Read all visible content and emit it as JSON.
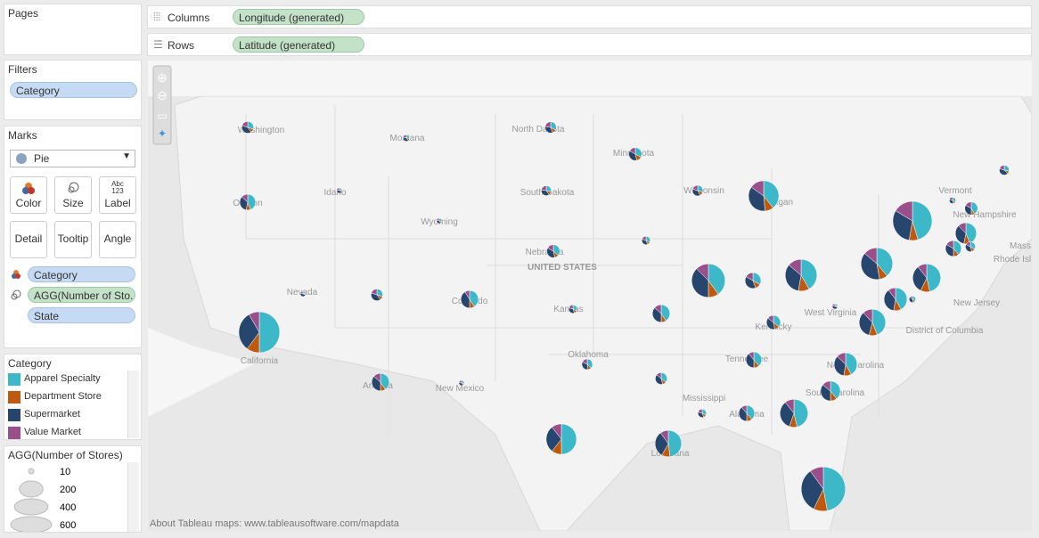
{
  "pages": {
    "title": "Pages"
  },
  "shelves": {
    "columns": {
      "label": "Columns",
      "pill": "Longitude (generated)"
    },
    "rows": {
      "label": "Rows",
      "pill": "Latitude (generated)"
    }
  },
  "filters": {
    "title": "Filters",
    "pills": [
      "Category"
    ]
  },
  "marks": {
    "title": "Marks",
    "type": "Pie",
    "buttons": [
      "Color",
      "Size",
      "Label",
      "Detail",
      "Tooltip",
      "Angle"
    ],
    "label_icon": [
      "Abc",
      "123"
    ],
    "pills": [
      "Category",
      "AGG(Number of Sto..",
      "State"
    ]
  },
  "color_legend": {
    "title": "Category",
    "series": [
      {
        "name": "Apparel Specialty",
        "color": "#3db8c8"
      },
      {
        "name": "Department Store",
        "color": "#c0590e"
      },
      {
        "name": "Supermarket",
        "color": "#26466d"
      },
      {
        "name": "Value Market",
        "color": "#9a4f8a"
      }
    ]
  },
  "size_legend": {
    "title": "AGG(Number of Stores)",
    "values": [
      10,
      200,
      400,
      600
    ]
  },
  "map": {
    "attribution": "About Tableau maps: www.tableausoftware.com/mapdata",
    "labels": [
      "Washington",
      "Montana",
      "North Dakota",
      "Minnesota",
      "Idaho",
      "South Dakota",
      "Wisconsin",
      "Michigan",
      "Vermont",
      "Oregon",
      "New Hampshire",
      "Wyoming",
      "Nebraska",
      "UNITED STATES",
      "Mass",
      "Rhode Isl",
      "Nevada",
      "Colorado",
      "Kansas",
      "New Jersey",
      "West Virginia",
      "Kentucky",
      "District of Columbia",
      "California",
      "Tennessee",
      "North Carolina",
      "Oklahoma",
      "Arizona",
      "New Mexico",
      "South Carolina",
      "Mississippi",
      "Alabama",
      "Louisiana"
    ],
    "pies": [
      {
        "values": [
          15,
          5,
          20,
          10
        ]
      },
      {
        "values": [
          4,
          2,
          6,
          3
        ]
      },
      {
        "values": [
          15,
          5,
          15,
          10
        ]
      },
      {
        "values": [
          20,
          8,
          22,
          10
        ]
      },
      {
        "values": [
          10,
          3,
          15,
          7
        ]
      },
      {
        "values": [
          40,
          8,
          30,
          12
        ]
      },
      {
        "values": [
          2,
          1,
          5,
          2
        ]
      },
      {
        "values": [
          10,
          4,
          13,
          8
        ]
      },
      {
        "values": [
          12,
          5,
          15,
          8
        ]
      },
      {
        "values": [
          130,
          30,
          120,
          50
        ]
      },
      {
        "values": [
          5,
          2,
          5,
          3
        ]
      },
      {
        "values": [
          25,
          5,
          20,
          10
        ]
      },
      {
        "values": [
          250,
          40,
          170,
          90
        ]
      },
      {
        "values": [
          3,
          1,
          4,
          2
        ]
      },
      {
        "values": [
          8,
          3,
          9,
          5
        ]
      },
      {
        "values": [
          22,
          6,
          22,
          10
        ]
      },
      {
        "values": [
          70,
          15,
          55,
          20
        ]
      },
      {
        "values": [
          12,
          4,
          13,
          6
        ]
      },
      {
        "values": [
          35,
          10,
          30,
          15
        ]
      },
      {
        "values": [
          2,
          1,
          5,
          2
        ]
      },
      {
        "values": [
          15,
          5,
          20,
          10
        ]
      },
      {
        "values": [
          45,
          10,
          45,
          10
        ]
      },
      {
        "values": [
          8,
          3,
          9,
          5
        ]
      },
      {
        "values": [
          160,
          40,
          150,
          50
        ]
      },
      {
        "values": [
          30,
          10,
          35,
          15
        ]
      },
      {
        "values": [
          150,
          40,
          120,
          50
        ]
      },
      {
        "values": [
          140,
          30,
          140,
          50
        ]
      },
      {
        "values": [
          130,
          30,
          90,
          30
        ]
      },
      {
        "values": [
          80,
          20,
          70,
          20
        ]
      },
      {
        "values": [
          5,
          2,
          6,
          2
        ]
      },
      {
        "values": [
          45,
          10,
          40,
          15
        ]
      },
      {
        "values": [
          25,
          8,
          27,
          10
        ]
      },
      {
        "values": [
          2,
          1,
          5,
          2
        ]
      },
      {
        "values": [
          110,
          25,
          85,
          30
        ]
      },
      {
        "values": [
          300,
          60,
          190,
          50
        ]
      },
      {
        "values": [
          15,
          4,
          14,
          7
        ]
      },
      {
        "values": [
          35,
          10,
          35,
          10
        ]
      },
      {
        "values": [
          80,
          20,
          65,
          25
        ]
      },
      {
        "values": [
          45,
          10,
          40,
          15
        ]
      },
      {
        "values": [
          3,
          1,
          4,
          2
        ]
      },
      {
        "values": [
          18,
          5,
          20,
          7
        ]
      },
      {
        "values": [
          55,
          15,
          50,
          20
        ]
      },
      {
        "values": [
          8,
          3,
          9,
          5
        ]
      },
      {
        "values": [
          35,
          10,
          35,
          10
        ]
      },
      {
        "values": [
          130,
          25,
          95,
          30
        ]
      },
      {
        "values": [
          165,
          35,
          95,
          35
        ]
      },
      {
        "values": [
          120,
          25,
          80,
          25
        ]
      },
      {
        "values": [
          330,
          70,
          230,
          70
        ]
      }
    ]
  }
}
